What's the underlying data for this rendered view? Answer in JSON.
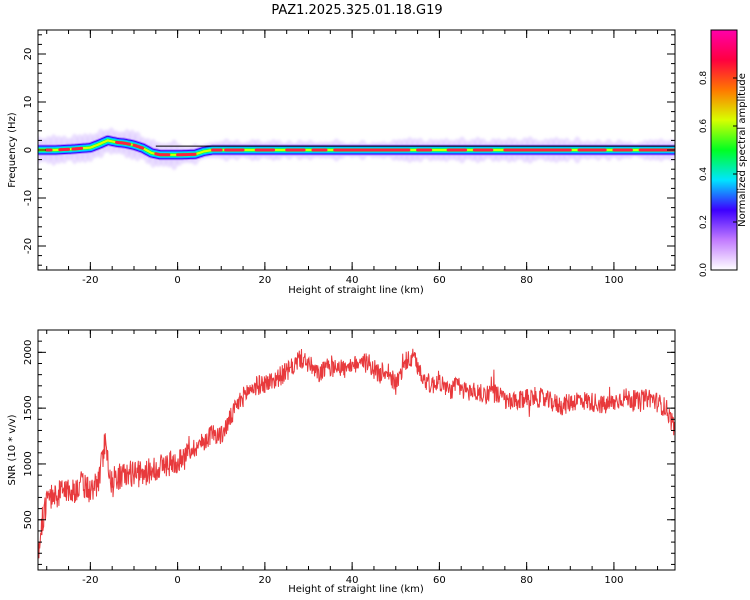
{
  "title": "PAZ1.2025.325.01.18.G19",
  "chart_data": [
    {
      "type": "heatmap",
      "xlabel": "Height of straight line (km)",
      "ylabel": "Frequency (Hz)",
      "xlim": [
        -32,
        114
      ],
      "ylim": [
        -25,
        25
      ],
      "x_ticks": [
        -20,
        0,
        20,
        40,
        60,
        80,
        100
      ],
      "x_tick_labels": [
        "-20",
        "0",
        "20",
        "40",
        "60",
        "80",
        "100"
      ],
      "y_ticks": [
        -20,
        -10,
        0,
        10,
        20
      ],
      "y_tick_labels": [
        "-20",
        "-10",
        "0",
        "10",
        "20"
      ],
      "ridge": {
        "x": [
          -32,
          -28,
          -24,
          -20,
          -18,
          -16,
          -14,
          -12,
          -10,
          -8,
          -6,
          -4,
          0,
          4,
          6,
          8,
          20,
          40,
          60,
          80,
          100,
          114
        ],
        "freq": [
          0,
          0,
          0.2,
          0.5,
          1.2,
          2.0,
          1.6,
          1.4,
          1.0,
          0.4,
          -0.6,
          -1.0,
          -1.0,
          -0.9,
          -0.3,
          0,
          0,
          0,
          0,
          0,
          0,
          0
        ]
      },
      "colorbar": {
        "label": "Normalized spectral amplitude",
        "range": [
          0,
          1
        ],
        "ticks": [
          0.0,
          0.2,
          0.4,
          0.6,
          0.8
        ],
        "tick_labels": [
          "0.0",
          "0.2",
          "0.4",
          "0.6",
          "0.8"
        ],
        "colors": [
          "#ffffff",
          "#c27bff",
          "#3c00ff",
          "#00e5ff",
          "#00ff22",
          "#d8ff00",
          "#ff7800",
          "#ff0040",
          "#ff00aa"
        ]
      }
    },
    {
      "type": "line",
      "xlabel": "Height of straight line (km)",
      "ylabel": "SNR (10 * v/v)",
      "xlim": [
        -32,
        114
      ],
      "ylim": [
        50,
        2200
      ],
      "x_ticks": [
        -20,
        0,
        20,
        40,
        60,
        80,
        100
      ],
      "x_tick_labels": [
        "-20",
        "0",
        "20",
        "40",
        "60",
        "80",
        "100"
      ],
      "y_ticks": [
        500,
        1000,
        1500,
        2000
      ],
      "y_tick_labels": [
        "500",
        "1000",
        "1500",
        "2000"
      ],
      "color": "#e8393c",
      "series": [
        {
          "x": [
            -32,
            -31,
            -30,
            -29,
            -28,
            -26,
            -24,
            -22,
            -20,
            -18,
            -16.5,
            -15.5,
            -14,
            -12,
            -10,
            -8,
            -6,
            -4,
            -2,
            0,
            2,
            4,
            6,
            8,
            10,
            12,
            14,
            16,
            18,
            20,
            22,
            24,
            26,
            28,
            30,
            32,
            34,
            36,
            38,
            40,
            42,
            44,
            46,
            48,
            50,
            52,
            54,
            56,
            58,
            60,
            62,
            64,
            66,
            68,
            70,
            72,
            74,
            76,
            78,
            80,
            82,
            84,
            86,
            88,
            90,
            92,
            94,
            96,
            98,
            100,
            102,
            104,
            106,
            108,
            110,
            112,
            114
          ],
          "y": [
            200,
            500,
            650,
            720,
            700,
            780,
            750,
            820,
            760,
            850,
            1250,
            850,
            880,
            900,
            920,
            900,
            950,
            980,
            1000,
            1020,
            1100,
            1150,
            1200,
            1280,
            1250,
            1400,
            1550,
            1650,
            1700,
            1720,
            1750,
            1800,
            1850,
            1950,
            1900,
            1800,
            1850,
            1900,
            1850,
            1850,
            1950,
            1900,
            1800,
            1850,
            1700,
            1900,
            1950,
            1800,
            1700,
            1750,
            1650,
            1700,
            1650,
            1650,
            1620,
            1650,
            1600,
            1550,
            1550,
            1600,
            1600,
            1580,
            1550,
            1520,
            1550,
            1580,
            1560,
            1550,
            1520,
            1550,
            1600,
            1580,
            1550,
            1600,
            1550,
            1500,
            1300
          ]
        }
      ]
    }
  ]
}
